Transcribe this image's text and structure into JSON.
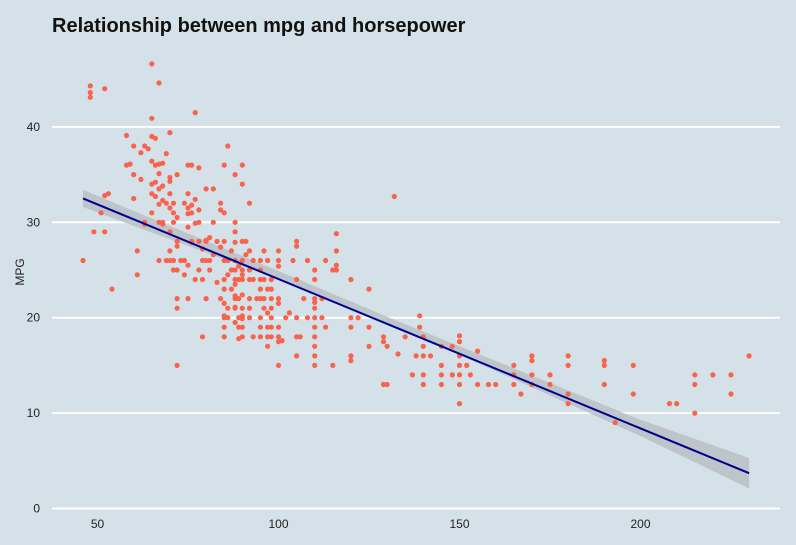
{
  "chart_data": {
    "type": "scatter",
    "title": "Relationship between mpg and horsepower",
    "xlabel": "",
    "ylabel": "MPG",
    "xlim": [
      38,
      234
    ],
    "ylim": [
      0,
      48
    ],
    "xticks": [
      50,
      100,
      150,
      200
    ],
    "yticks": [
      0,
      10,
      20,
      30,
      40
    ],
    "grid": "horizontal",
    "colors": {
      "background": "#d5e1e8",
      "grid": "#ffffff",
      "points": "#f8634b",
      "line": "#00008b",
      "band": "#b8bfc6"
    },
    "regression": {
      "x": [
        46,
        230
      ],
      "y": [
        32.5,
        3.7
      ],
      "band": {
        "x": [
          46,
          100,
          130,
          150,
          200,
          230
        ],
        "lower": [
          31.6,
          24.0,
          19.4,
          16.1,
          7.6,
          2.1
        ],
        "upper": [
          33.4,
          24.9,
          20.1,
          17.0,
          9.3,
          5.3
        ]
      }
    },
    "points": [
      [
        46,
        26
      ],
      [
        48,
        44.3
      ],
      [
        48,
        43.6
      ],
      [
        48,
        43.1
      ],
      [
        49,
        29
      ],
      [
        51,
        31
      ],
      [
        52,
        32.8
      ],
      [
        52,
        29
      ],
      [
        52,
        44
      ],
      [
        53,
        33
      ],
      [
        54,
        23
      ],
      [
        58,
        39.1
      ],
      [
        58,
        36
      ],
      [
        59,
        36.1
      ],
      [
        60,
        38
      ],
      [
        60,
        35
      ],
      [
        60,
        32.5
      ],
      [
        61,
        27
      ],
      [
        61,
        24.5
      ],
      [
        62,
        37.3
      ],
      [
        62,
        34.5
      ],
      [
        63,
        38
      ],
      [
        63,
        30
      ],
      [
        63,
        29.8
      ],
      [
        64,
        37.7
      ],
      [
        65,
        39
      ],
      [
        65,
        36.4
      ],
      [
        65,
        34
      ],
      [
        65,
        33
      ],
      [
        65,
        31
      ],
      [
        65,
        46.6
      ],
      [
        65,
        40.9
      ],
      [
        66,
        38.8
      ],
      [
        66,
        36
      ],
      [
        66,
        34.2
      ],
      [
        66,
        32.7
      ],
      [
        67,
        36.1
      ],
      [
        67,
        33.5
      ],
      [
        67,
        44.6
      ],
      [
        67,
        35.1
      ],
      [
        67,
        26
      ],
      [
        67,
        30
      ],
      [
        67,
        31.9
      ],
      [
        68,
        36.2
      ],
      [
        68,
        33.8
      ],
      [
        68,
        32.3
      ],
      [
        68,
        29.8
      ],
      [
        68,
        30
      ],
      [
        69,
        37.2
      ],
      [
        69,
        32
      ],
      [
        69,
        26
      ],
      [
        70,
        34.3
      ],
      [
        70,
        33
      ],
      [
        70,
        31.5
      ],
      [
        70,
        34.7
      ],
      [
        70,
        27
      ],
      [
        70,
        29
      ],
      [
        70,
        39.4
      ],
      [
        70,
        26
      ],
      [
        71,
        32
      ],
      [
        71,
        30
      ],
      [
        71,
        31
      ],
      [
        71,
        25
      ],
      [
        71,
        26
      ],
      [
        72,
        28
      ],
      [
        72,
        30.5
      ],
      [
        72,
        22
      ],
      [
        72,
        21
      ],
      [
        72,
        15
      ],
      [
        72,
        25
      ],
      [
        72,
        27.5
      ],
      [
        72,
        35
      ],
      [
        73,
        26
      ],
      [
        74,
        26
      ],
      [
        74,
        24.5
      ],
      [
        74,
        32
      ],
      [
        75,
        31.5
      ],
      [
        75,
        36
      ],
      [
        75,
        29.5
      ],
      [
        75,
        30.9
      ],
      [
        75,
        22
      ],
      [
        75,
        25.5
      ],
      [
        75,
        33
      ],
      [
        76,
        36
      ],
      [
        76,
        31.8
      ],
      [
        76,
        28
      ],
      [
        76,
        31
      ],
      [
        76,
        27.9
      ],
      [
        77,
        24
      ],
      [
        77,
        29.9
      ],
      [
        77,
        32.4
      ],
      [
        77,
        41.5
      ],
      [
        78,
        25
      ],
      [
        78,
        28
      ],
      [
        78,
        31.3
      ],
      [
        78,
        30
      ],
      [
        78,
        35.7
      ],
      [
        79,
        24
      ],
      [
        79,
        18
      ],
      [
        79,
        26
      ],
      [
        79,
        27.2
      ],
      [
        80,
        28
      ],
      [
        80,
        26
      ],
      [
        80,
        22
      ],
      [
        80,
        28.1
      ],
      [
        80,
        33.5
      ],
      [
        81,
        28.4
      ],
      [
        81,
        26
      ],
      [
        81,
        25
      ],
      [
        82,
        26.6
      ],
      [
        82,
        33.5
      ],
      [
        82,
        30
      ],
      [
        83,
        23.7
      ],
      [
        83,
        28
      ],
      [
        84,
        22
      ],
      [
        84,
        27.4
      ],
      [
        84,
        32
      ],
      [
        84,
        31.3
      ],
      [
        85,
        20
      ],
      [
        85,
        19
      ],
      [
        85,
        18
      ],
      [
        85,
        36
      ],
      [
        85,
        26
      ],
      [
        85,
        23
      ],
      [
        85,
        24
      ],
      [
        85,
        28
      ],
      [
        85,
        20.2
      ],
      [
        85,
        21.5
      ],
      [
        85,
        31
      ],
      [
        86,
        26
      ],
      [
        86,
        24.5
      ],
      [
        86,
        21
      ],
      [
        86,
        20
      ],
      [
        86,
        38
      ],
      [
        87,
        27
      ],
      [
        87,
        25
      ],
      [
        87,
        23
      ],
      [
        88,
        26
      ],
      [
        88,
        24
      ],
      [
        88,
        25
      ],
      [
        88,
        21
      ],
      [
        88,
        22
      ],
      [
        88,
        29
      ],
      [
        88,
        35
      ],
      [
        88,
        22.3
      ],
      [
        88,
        23.5
      ],
      [
        88,
        27.9
      ],
      [
        88,
        19.5
      ],
      [
        88,
        21.1
      ],
      [
        88,
        30
      ],
      [
        89,
        24
      ],
      [
        89,
        17.8
      ],
      [
        89,
        19
      ],
      [
        89,
        20
      ],
      [
        89,
        25.4
      ],
      [
        89,
        22
      ],
      [
        90,
        36
      ],
      [
        90,
        28
      ],
      [
        90,
        34
      ],
      [
        90,
        24
      ],
      [
        90,
        21
      ],
      [
        90,
        26
      ],
      [
        90,
        20
      ],
      [
        90,
        19
      ],
      [
        90,
        18
      ],
      [
        90,
        25
      ],
      [
        90,
        22.4
      ],
      [
        90,
        20.2
      ],
      [
        90,
        24.5
      ],
      [
        90,
        19.9
      ],
      [
        91,
        26.6
      ],
      [
        91,
        28
      ],
      [
        92,
        27
      ],
      [
        92,
        24
      ],
      [
        92,
        32
      ],
      [
        92,
        20
      ],
      [
        92,
        21
      ],
      [
        92,
        22
      ],
      [
        92,
        25
      ],
      [
        93,
        26
      ],
      [
        93,
        18
      ],
      [
        93,
        24
      ],
      [
        94,
        22
      ],
      [
        95,
        26
      ],
      [
        95,
        25
      ],
      [
        95,
        24
      ],
      [
        95,
        23
      ],
      [
        95,
        22
      ],
      [
        95,
        18
      ],
      [
        95,
        19
      ],
      [
        95,
        20
      ],
      [
        96,
        27
      ],
      [
        96,
        21
      ],
      [
        96,
        24
      ],
      [
        96,
        22
      ],
      [
        97,
        23
      ],
      [
        97,
        17
      ],
      [
        97,
        18
      ],
      [
        97,
        20.5
      ],
      [
        97,
        26
      ],
      [
        97,
        19
      ],
      [
        98,
        23
      ],
      [
        98,
        21
      ],
      [
        98,
        24
      ],
      [
        98,
        18
      ],
      [
        98,
        22
      ],
      [
        98,
        19
      ],
      [
        98,
        20
      ],
      [
        100,
        27
      ],
      [
        100,
        19
      ],
      [
        100,
        15
      ],
      [
        100,
        18
      ],
      [
        100,
        17.5
      ],
      [
        100,
        21.5
      ],
      [
        100,
        22
      ],
      [
        100,
        25.4
      ],
      [
        100,
        26
      ],
      [
        101,
        17.6
      ],
      [
        102,
        20
      ],
      [
        103,
        20.5
      ],
      [
        104,
        26
      ],
      [
        105,
        28
      ],
      [
        105,
        20
      ],
      [
        105,
        18
      ],
      [
        105,
        16
      ],
      [
        105,
        24
      ],
      [
        105,
        27.5
      ],
      [
        106,
        18
      ],
      [
        107,
        22
      ],
      [
        108,
        20
      ],
      [
        108,
        26
      ],
      [
        110,
        22
      ],
      [
        110,
        21
      ],
      [
        110,
        25
      ],
      [
        110,
        24
      ],
      [
        110,
        20
      ],
      [
        110,
        16
      ],
      [
        110,
        18
      ],
      [
        110,
        19
      ],
      [
        110,
        17
      ],
      [
        110,
        15
      ],
      [
        110,
        21.6
      ],
      [
        112,
        20
      ],
      [
        112,
        22
      ],
      [
        113,
        19
      ],
      [
        113,
        26
      ],
      [
        115,
        25
      ],
      [
        115,
        15
      ],
      [
        116,
        25
      ],
      [
        116,
        27
      ],
      [
        116,
        28.8
      ],
      [
        116,
        25.5
      ],
      [
        120,
        24
      ],
      [
        120,
        20
      ],
      [
        120,
        19
      ],
      [
        120,
        16
      ],
      [
        120,
        15.5
      ],
      [
        122,
        20
      ],
      [
        125,
        23
      ],
      [
        125,
        17
      ],
      [
        125,
        19
      ],
      [
        129,
        18
      ],
      [
        129,
        17.5
      ],
      [
        129,
        13
      ],
      [
        130,
        17
      ],
      [
        130,
        13
      ],
      [
        132,
        32.7
      ],
      [
        133,
        16.2
      ],
      [
        135,
        18
      ],
      [
        137,
        14
      ],
      [
        138,
        16
      ],
      [
        139,
        20.2
      ],
      [
        139,
        19
      ],
      [
        140,
        18
      ],
      [
        140,
        14
      ],
      [
        140,
        17
      ],
      [
        140,
        16
      ],
      [
        140,
        13
      ],
      [
        142,
        16
      ],
      [
        145,
        17
      ],
      [
        145,
        13
      ],
      [
        145,
        14
      ],
      [
        145,
        15
      ],
      [
        148,
        17
      ],
      [
        148,
        14
      ],
      [
        150,
        18.1
      ],
      [
        150,
        17.5
      ],
      [
        150,
        16
      ],
      [
        150,
        15
      ],
      [
        150,
        14
      ],
      [
        150,
        13
      ],
      [
        150,
        11
      ],
      [
        152,
        15
      ],
      [
        153,
        14
      ],
      [
        155,
        16.5
      ],
      [
        155,
        13
      ],
      [
        158,
        13
      ],
      [
        160,
        13
      ],
      [
        165,
        15
      ],
      [
        165,
        14
      ],
      [
        165,
        13
      ],
      [
        167,
        12
      ],
      [
        170,
        16
      ],
      [
        170,
        15.5
      ],
      [
        170,
        14
      ],
      [
        170,
        13
      ],
      [
        175,
        14
      ],
      [
        175,
        13
      ],
      [
        180,
        16
      ],
      [
        180,
        15
      ],
      [
        180,
        12
      ],
      [
        180,
        11
      ],
      [
        190,
        15.5
      ],
      [
        190,
        15
      ],
      [
        190,
        13
      ],
      [
        193,
        9
      ],
      [
        198,
        15
      ],
      [
        198,
        12
      ],
      [
        208,
        11
      ],
      [
        210,
        11
      ],
      [
        215,
        14
      ],
      [
        215,
        13
      ],
      [
        215,
        10
      ],
      [
        220,
        14
      ],
      [
        225,
        14
      ],
      [
        225,
        12
      ],
      [
        230,
        16
      ]
    ]
  }
}
